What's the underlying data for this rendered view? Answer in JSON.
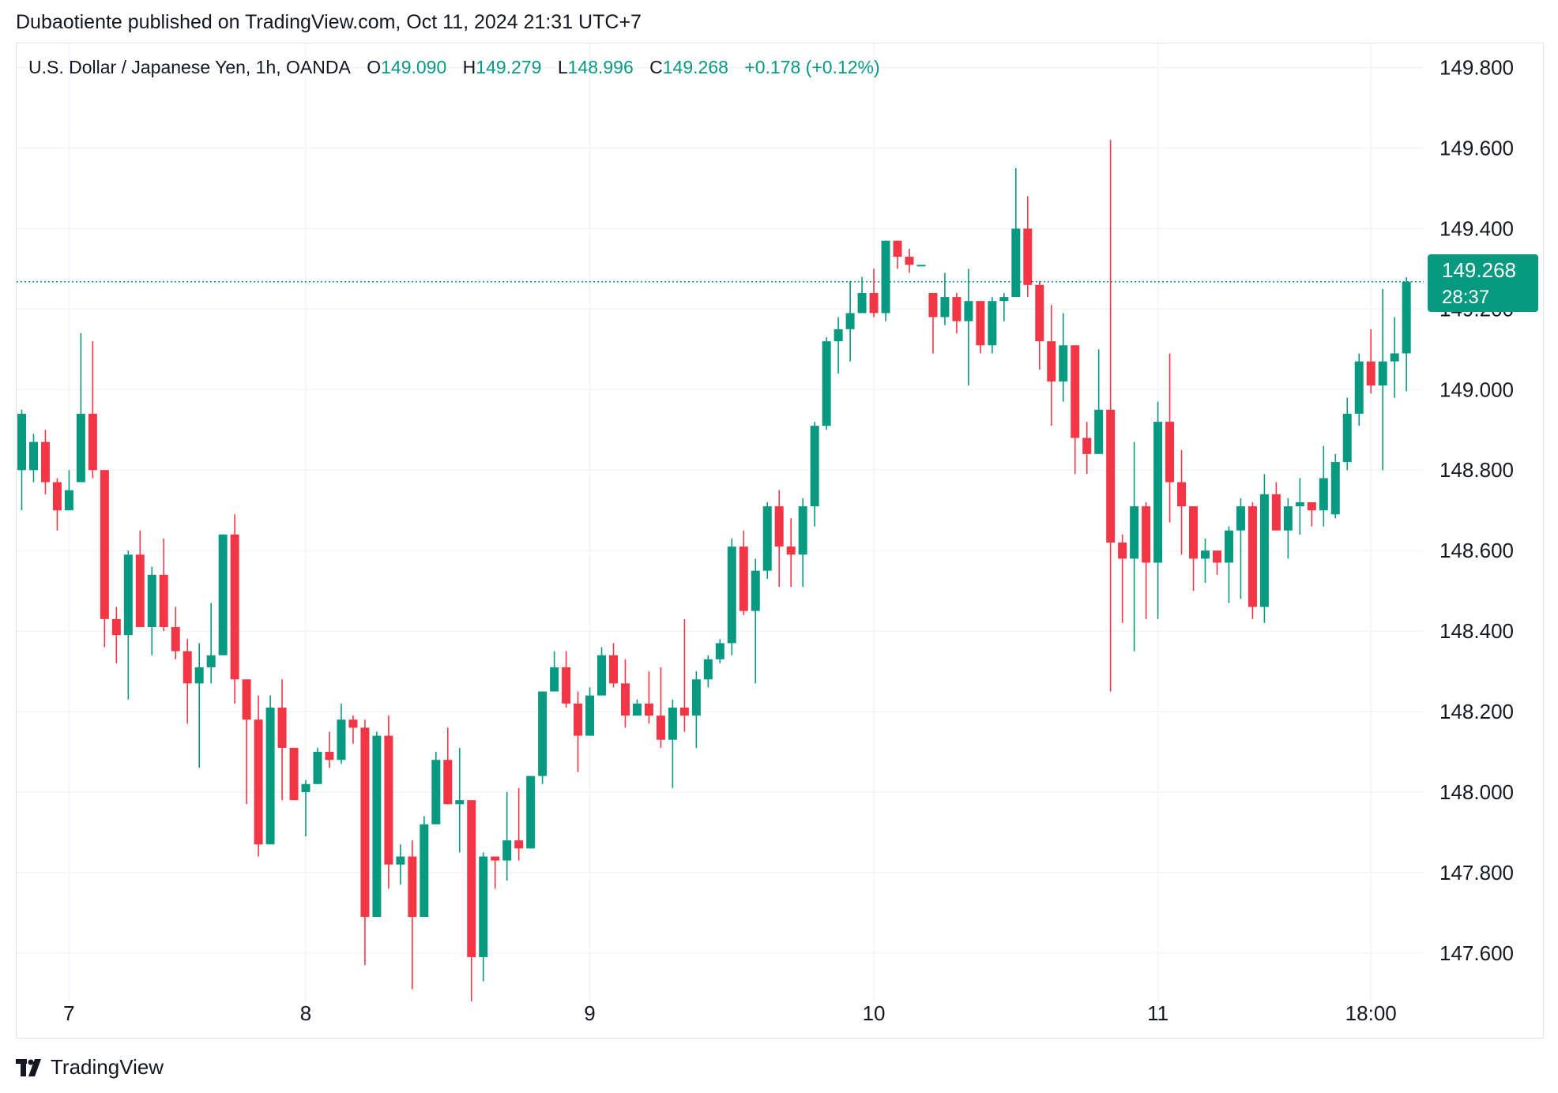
{
  "header": {
    "published": "Dubaotiente published on TradingView.com, Oct 11, 2024 21:31 UTC+7"
  },
  "legend": {
    "symbol": "U.S. Dollar / Japanese Yen, 1h, OANDA",
    "open_label": "O",
    "open": "149.090",
    "high_label": "H",
    "high": "149.279",
    "low_label": "L",
    "low": "148.996",
    "close_label": "C",
    "close": "149.268",
    "change": "+0.178 (+0.12%)"
  },
  "price_badge": {
    "price": "149.268",
    "countdown": "28:37"
  },
  "footer": {
    "brand": "TradingView",
    "logo_icon": "tradingview-logo-icon"
  },
  "colors": {
    "up": "#089981",
    "down": "#f23645",
    "grid": "#f0f3fa",
    "text": "#131722"
  },
  "chart_data": {
    "type": "candlestick",
    "title": "U.S. Dollar / Japanese Yen, 1h, OANDA",
    "ylim": [
      147.48,
      149.86
    ],
    "yticks": [
      "149.800",
      "149.600",
      "149.400",
      "149.200",
      "149.000",
      "148.800",
      "148.600",
      "148.400",
      "148.200",
      "148.000",
      "147.800",
      "147.600"
    ],
    "xticks": [
      {
        "label": "7",
        "index": 4
      },
      {
        "label": "8",
        "index": 24
      },
      {
        "label": "9",
        "index": 48
      },
      {
        "label": "10",
        "index": 72
      },
      {
        "label": "11",
        "index": 96
      },
      {
        "label": "18:00",
        "index": 114
      }
    ],
    "last_price": 149.268,
    "grid": true,
    "candles": [
      [
        148.8,
        148.94,
        148.95,
        148.7
      ],
      [
        148.8,
        148.87,
        148.89,
        148.77
      ],
      [
        148.87,
        148.77,
        148.9,
        148.74
      ],
      [
        148.77,
        148.7,
        148.78,
        148.65
      ],
      [
        148.7,
        148.75,
        148.8,
        148.72
      ],
      [
        148.77,
        148.94,
        149.14,
        148.77
      ],
      [
        148.94,
        148.8,
        149.12,
        148.78
      ],
      [
        148.8,
        148.43,
        148.8,
        148.36
      ],
      [
        148.43,
        148.39,
        148.46,
        148.32
      ],
      [
        148.39,
        148.59,
        148.6,
        148.23
      ],
      [
        148.59,
        148.41,
        148.65,
        148.41
      ],
      [
        148.41,
        148.54,
        148.56,
        148.34
      ],
      [
        148.54,
        148.41,
        148.63,
        148.4
      ],
      [
        148.41,
        148.35,
        148.46,
        148.33
      ],
      [
        148.35,
        148.27,
        148.38,
        148.17
      ],
      [
        148.27,
        148.31,
        148.37,
        148.06
      ],
      [
        148.31,
        148.34,
        148.47,
        148.27
      ],
      [
        148.34,
        148.64,
        148.64,
        148.34
      ],
      [
        148.64,
        148.28,
        148.69,
        148.22
      ],
      [
        148.28,
        148.18,
        148.28,
        147.97
      ],
      [
        148.18,
        147.87,
        148.24,
        147.84
      ],
      [
        147.87,
        148.21,
        148.24,
        147.88
      ],
      [
        148.21,
        148.11,
        148.28,
        147.98
      ],
      [
        148.11,
        147.98,
        148.11,
        147.98
      ],
      [
        148.0,
        148.02,
        148.03,
        147.89
      ],
      [
        148.02,
        148.1,
        148.11,
        148.02
      ],
      [
        148.1,
        148.08,
        148.15,
        148.06
      ],
      [
        148.08,
        148.18,
        148.22,
        148.07
      ],
      [
        148.18,
        148.16,
        148.19,
        148.12
      ],
      [
        148.16,
        147.69,
        148.18,
        147.57
      ],
      [
        147.69,
        148.14,
        148.15,
        147.69
      ],
      [
        148.14,
        147.82,
        148.19,
        147.76
      ],
      [
        147.82,
        147.84,
        147.87,
        147.77
      ],
      [
        147.84,
        147.69,
        147.88,
        147.51
      ],
      [
        147.69,
        147.92,
        147.94,
        147.69
      ],
      [
        147.92,
        148.08,
        148.1,
        147.92
      ],
      [
        148.08,
        147.97,
        148.16,
        147.97
      ],
      [
        147.97,
        147.98,
        148.11,
        147.85
      ],
      [
        147.98,
        147.59,
        147.98,
        147.48
      ],
      [
        147.59,
        147.84,
        147.85,
        147.53
      ],
      [
        147.84,
        147.83,
        147.84,
        147.76
      ],
      [
        147.83,
        147.88,
        148.0,
        147.78
      ],
      [
        147.88,
        147.86,
        148.01,
        147.83
      ],
      [
        147.86,
        148.04,
        148.04,
        147.86
      ],
      [
        148.04,
        148.25,
        148.25,
        148.02
      ],
      [
        148.25,
        148.31,
        148.35,
        148.31
      ],
      [
        148.31,
        148.22,
        148.35,
        148.21
      ],
      [
        148.22,
        148.14,
        148.25,
        148.05
      ],
      [
        148.14,
        148.24,
        148.26,
        148.14
      ],
      [
        148.24,
        148.34,
        148.36,
        148.25
      ],
      [
        148.34,
        148.27,
        148.37,
        148.26
      ],
      [
        148.27,
        148.19,
        148.33,
        148.16
      ],
      [
        148.19,
        148.22,
        148.23,
        148.19
      ],
      [
        148.22,
        148.19,
        148.3,
        148.17
      ],
      [
        148.19,
        148.13,
        148.31,
        148.11
      ],
      [
        148.13,
        148.21,
        148.23,
        148.01
      ],
      [
        148.21,
        148.19,
        148.43,
        148.15
      ],
      [
        148.19,
        148.28,
        148.3,
        148.11
      ],
      [
        148.28,
        148.33,
        148.34,
        148.26
      ],
      [
        148.33,
        148.37,
        148.38,
        148.32
      ],
      [
        148.37,
        148.61,
        148.63,
        148.34
      ],
      [
        148.61,
        148.45,
        148.65,
        148.44
      ],
      [
        148.45,
        148.55,
        148.58,
        148.27
      ],
      [
        148.55,
        148.71,
        148.72,
        148.53
      ],
      [
        148.71,
        148.61,
        148.75,
        148.51
      ],
      [
        148.61,
        148.59,
        148.68,
        148.51
      ],
      [
        148.59,
        148.71,
        148.73,
        148.51
      ],
      [
        148.71,
        148.91,
        148.92,
        148.66
      ],
      [
        148.91,
        149.12,
        149.13,
        148.9
      ],
      [
        149.12,
        149.15,
        149.18,
        149.04
      ],
      [
        149.15,
        149.19,
        149.27,
        149.07
      ],
      [
        149.19,
        149.24,
        149.28,
        149.21
      ],
      [
        149.24,
        149.19,
        149.3,
        149.18
      ],
      [
        149.19,
        149.37,
        149.37,
        149.17
      ],
      [
        149.37,
        149.33,
        149.37,
        149.3
      ],
      [
        149.33,
        149.31,
        149.35,
        149.29
      ],
      [
        149.31,
        149.31,
        149.31,
        149.31
      ],
      [
        149.24,
        149.18,
        149.24,
        149.09
      ],
      [
        149.18,
        149.23,
        149.29,
        149.16
      ],
      [
        149.23,
        149.17,
        149.24,
        149.14
      ],
      [
        149.17,
        149.22,
        149.3,
        149.01
      ],
      [
        149.22,
        149.11,
        149.22,
        149.09
      ],
      [
        149.11,
        149.22,
        149.23,
        149.09
      ],
      [
        149.22,
        149.23,
        149.24,
        149.17
      ],
      [
        149.23,
        149.4,
        149.55,
        149.23
      ],
      [
        149.4,
        149.26,
        149.48,
        149.23
      ],
      [
        149.26,
        149.12,
        149.27,
        149.05
      ],
      [
        149.12,
        149.02,
        149.21,
        148.91
      ],
      [
        149.02,
        149.11,
        149.19,
        148.97
      ],
      [
        149.11,
        148.88,
        149.11,
        148.79
      ],
      [
        148.88,
        148.84,
        148.92,
        148.79
      ],
      [
        148.84,
        148.95,
        149.1,
        148.84
      ],
      [
        148.95,
        148.62,
        149.62,
        148.25
      ],
      [
        148.62,
        148.58,
        148.64,
        148.42
      ],
      [
        148.58,
        148.71,
        148.87,
        148.35
      ],
      [
        148.71,
        148.57,
        148.72,
        148.43
      ],
      [
        148.57,
        148.92,
        148.97,
        148.43
      ],
      [
        148.92,
        148.77,
        149.09,
        148.67
      ],
      [
        148.77,
        148.71,
        148.85,
        148.59
      ],
      [
        148.71,
        148.58,
        148.71,
        148.5
      ],
      [
        148.58,
        148.6,
        148.63,
        148.52
      ],
      [
        148.6,
        148.57,
        148.59,
        148.54
      ],
      [
        148.57,
        148.65,
        148.66,
        148.47
      ],
      [
        148.65,
        148.71,
        148.73,
        148.48
      ],
      [
        148.71,
        148.46,
        148.72,
        148.43
      ],
      [
        148.46,
        148.74,
        148.79,
        148.42
      ],
      [
        148.74,
        148.65,
        148.77,
        148.65
      ],
      [
        148.65,
        148.71,
        148.73,
        148.58
      ],
      [
        148.71,
        148.72,
        148.78,
        148.64
      ],
      [
        148.72,
        148.7,
        148.71,
        148.66
      ],
      [
        148.7,
        148.78,
        148.86,
        148.66
      ],
      [
        148.69,
        148.82,
        148.84,
        148.68
      ],
      [
        148.82,
        148.94,
        148.98,
        148.8
      ],
      [
        148.94,
        149.07,
        149.09,
        148.91
      ],
      [
        149.07,
        149.01,
        149.15,
        148.99
      ],
      [
        149.01,
        149.07,
        149.25,
        148.8
      ],
      [
        149.07,
        149.09,
        149.18,
        148.98
      ],
      [
        149.09,
        149.268,
        149.279,
        148.996
      ]
    ]
  }
}
